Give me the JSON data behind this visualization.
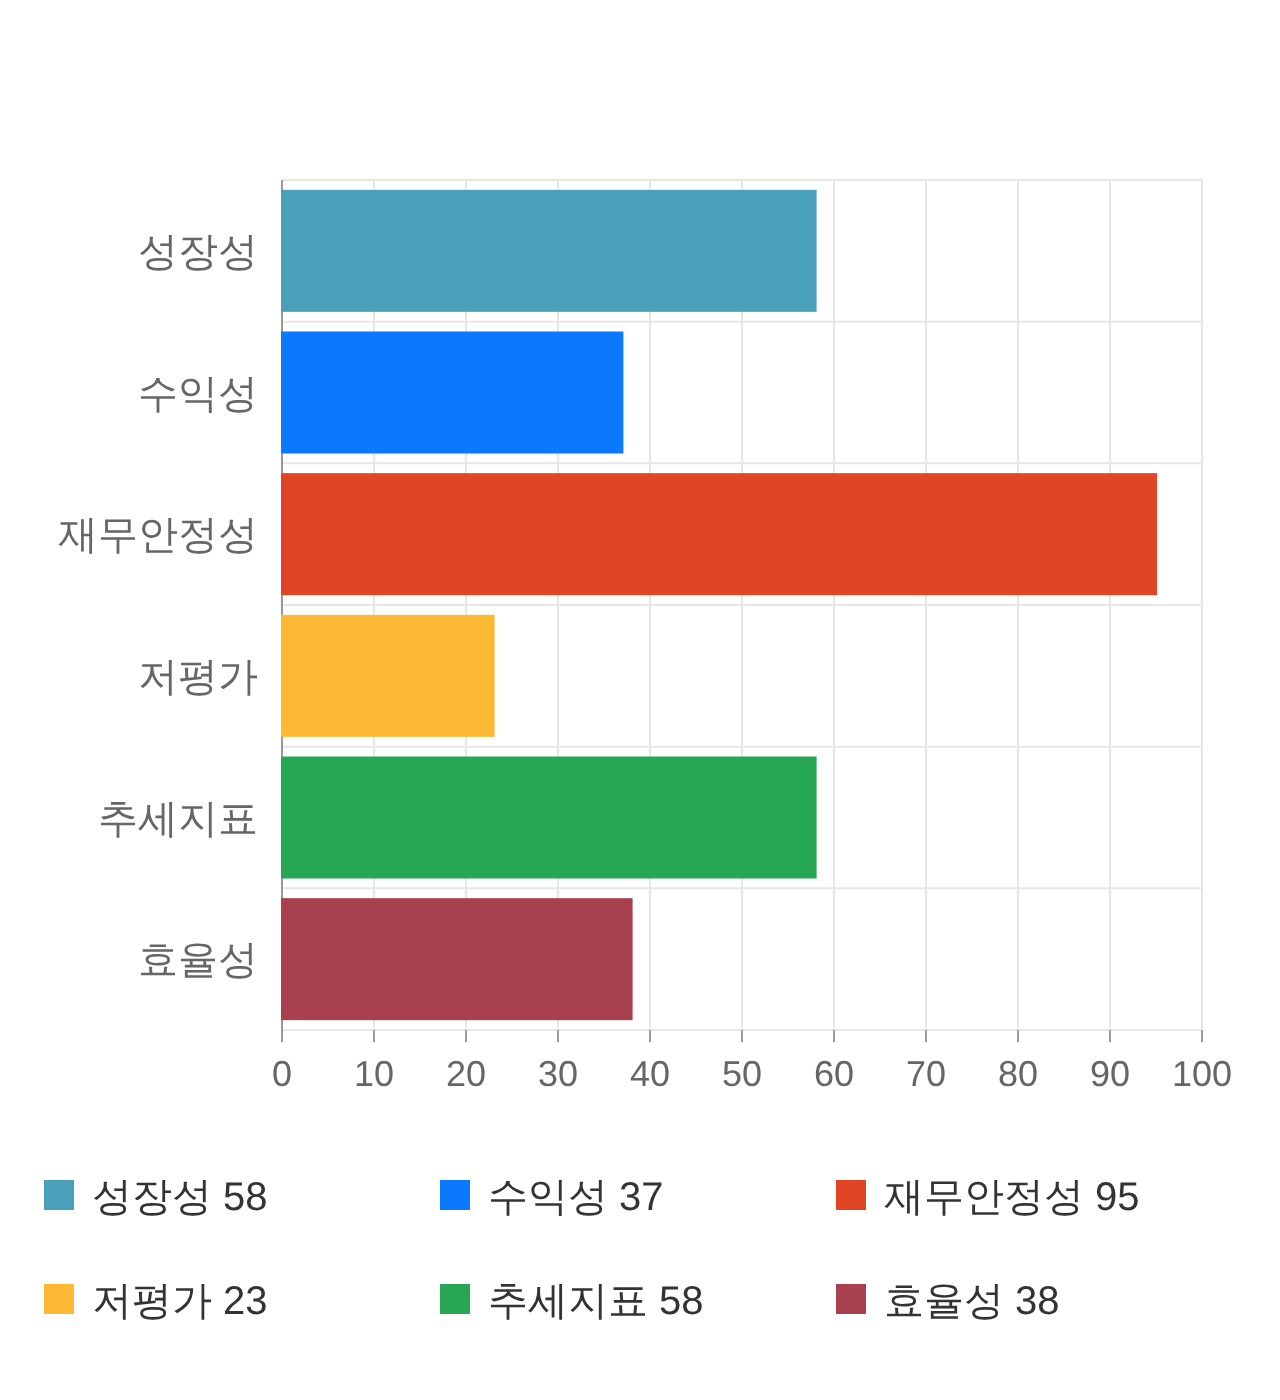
{
  "chart_data": {
    "type": "bar",
    "orientation": "horizontal",
    "categories": [
      "성장성",
      "수익성",
      "재무안정성",
      "저평가",
      "추세지표",
      "효율성"
    ],
    "series": [
      {
        "name": "성장성 58",
        "color": "#4aa0b8",
        "values": [
          58,
          null,
          null,
          null,
          null,
          null
        ]
      },
      {
        "name": "수익성 37",
        "color": "#0a78ff",
        "values": [
          null,
          37,
          null,
          null,
          null,
          null
        ]
      },
      {
        "name": "재무안정성 95",
        "color": "#e24523",
        "values": [
          null,
          null,
          95,
          null,
          null,
          null
        ]
      },
      {
        "name": "저평가 23",
        "color": "#ffb833",
        "values": [
          null,
          null,
          null,
          23,
          null,
          null
        ]
      },
      {
        "name": "추세지표 58",
        "color": "#27a654",
        "values": [
          null,
          null,
          null,
          null,
          58,
          null
        ]
      },
      {
        "name": "효율성 38",
        "color": "#a8404f",
        "values": [
          null,
          null,
          null,
          null,
          null,
          38
        ]
      }
    ],
    "xlim": [
      0,
      100
    ],
    "xticks": [
      0,
      10,
      20,
      30,
      40,
      50,
      60,
      70,
      80,
      90,
      100
    ],
    "grid": true,
    "legend": "bottom"
  }
}
